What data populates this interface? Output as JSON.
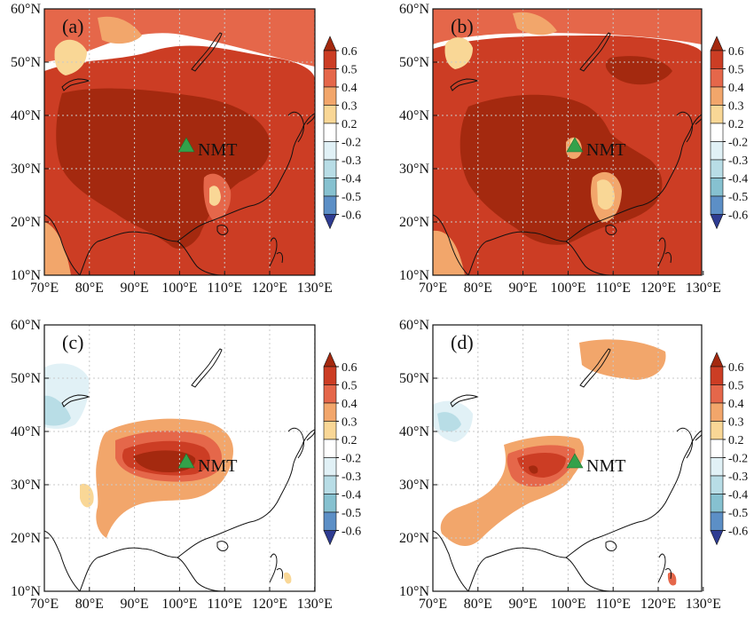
{
  "palette": {
    "0.6": "#a4290f",
    "0.5": "#cc3d24",
    "0.4": "#e5674a",
    "0.3": "#f2a66b",
    "0.2": "#f9d796",
    "-0.2": "#e1f1f6",
    "-0.3": "#b8dde6",
    "-0.4": "#86c1d0",
    "-0.5": "#5c8fc6",
    "-0.6": "#2e3c92",
    "station": "#33a14a",
    "gridline": "#c9c9c9"
  },
  "lon_ticks": [
    "70°E",
    "80°E",
    "90°E",
    "100°E",
    "110°E",
    "120°E",
    "130°E"
  ],
  "lat_ticks": [
    "10°N",
    "20°N",
    "30°N",
    "40°N",
    "50°N",
    "60°N"
  ],
  "colorbar_ticks": [
    "0.6",
    "0.5",
    "0.4",
    "0.3",
    "0.2",
    "-0.2",
    "-0.3",
    "-0.4",
    "-0.5",
    "-0.6"
  ],
  "station_name": "NMT",
  "station_marker": "triangle-icon",
  "panels": [
    {
      "label": "(a)"
    },
    {
      "label": "(b)"
    },
    {
      "label": "(c)"
    },
    {
      "label": "(d)"
    }
  ]
}
